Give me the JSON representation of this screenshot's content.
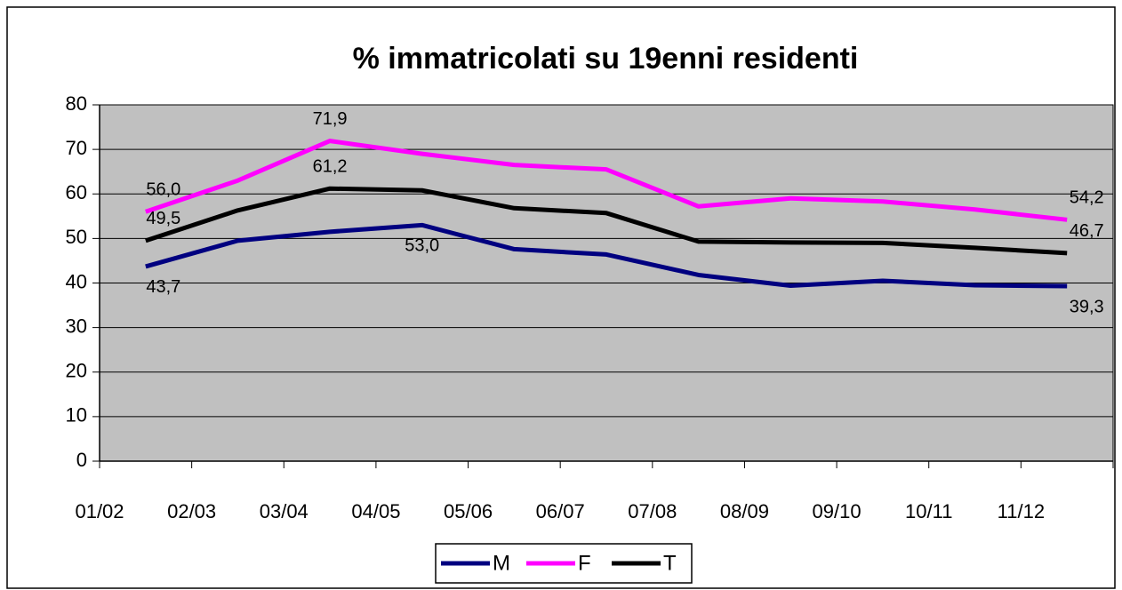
{
  "chart_data": {
    "type": "line",
    "title": "% immatricolati su 19enni residenti",
    "categories": [
      "01/02",
      "02/03",
      "03/04",
      "04/05",
      "05/06",
      "06/07",
      "07/08",
      "08/09",
      "09/10",
      "10/11",
      "11/12"
    ],
    "series": [
      {
        "name": "M",
        "color": "#000080",
        "values": [
          43.7,
          49.5,
          51.5,
          53.0,
          47.6,
          46.4,
          41.8,
          39.4,
          40.5,
          39.5,
          39.3
        ],
        "value_labels": [
          "43,7",
          null,
          null,
          "53,0",
          null,
          null,
          null,
          null,
          null,
          null,
          "39,3"
        ]
      },
      {
        "name": "F",
        "color": "#ff00ff",
        "values": [
          56.0,
          63.0,
          71.9,
          69.0,
          66.5,
          65.5,
          57.2,
          59.0,
          58.3,
          56.5,
          54.2
        ],
        "value_labels": [
          "56,0",
          null,
          "71,9",
          null,
          null,
          null,
          null,
          null,
          null,
          null,
          "54,2"
        ]
      },
      {
        "name": "T",
        "color": "#000000",
        "values": [
          49.5,
          56.3,
          61.2,
          60.8,
          56.8,
          55.7,
          49.3,
          49.1,
          49.0,
          47.9,
          46.7
        ],
        "value_labels": [
          "49,5",
          null,
          "61,2",
          null,
          null,
          null,
          null,
          null,
          null,
          null,
          "46,7"
        ]
      }
    ],
    "ylim": [
      0,
      80
    ],
    "yticks": [
      0,
      10,
      20,
      30,
      40,
      50,
      60,
      70,
      80
    ],
    "grid": true,
    "plot_background": "#c0c0c0",
    "legend": "bottom"
  }
}
